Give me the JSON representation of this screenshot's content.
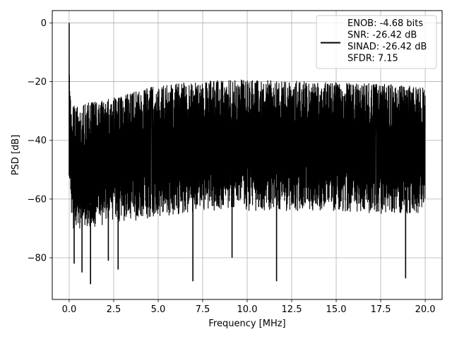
{
  "chart_data": {
    "type": "line",
    "title": "",
    "xlabel": "Frequency [MHz]",
    "ylabel": "PSD [dB]",
    "xlim": [
      -0.95,
      20.95
    ],
    "ylim": [
      -94.2,
      4.2
    ],
    "xticks": [
      0.0,
      2.5,
      5.0,
      7.5,
      10.0,
      12.5,
      15.0,
      17.5,
      20.0
    ],
    "xtick_labels": [
      "0.0",
      "2.5",
      "5.0",
      "7.5",
      "10.0",
      "12.5",
      "15.0",
      "17.5",
      "20.0"
    ],
    "yticks": [
      0,
      -20,
      -40,
      -60,
      -80
    ],
    "ytick_labels": [
      "0",
      "−20",
      "−40",
      "−60",
      "−80"
    ],
    "grid": true,
    "legend_position": "upper-right",
    "series": [
      {
        "name": "ENOB: -4.68 bits\nSNR: -26.42 dB\nSINAD: -26.42 dB\nSFDR: 7.15",
        "legend_lines": [
          "ENOB: -4.68 bits",
          "SNR: -26.42 dB",
          "SINAD: -26.42 dB",
          "SFDR: 7.15"
        ],
        "color": "#000000",
        "envelope_x": [
          0.0,
          0.05,
          0.1,
          0.5,
          1.0,
          2.0,
          3.0,
          4.0,
          5.0,
          7.5,
          10.0,
          12.5,
          15.0,
          17.5,
          20.0
        ],
        "envelope_top": [
          0.0,
          -20.0,
          -29.0,
          -29.0,
          -28.5,
          -27.5,
          -26.0,
          -24.0,
          -22.5,
          -21.0,
          -20.5,
          -21.0,
          -21.5,
          -22.0,
          -23.0
        ],
        "envelope_bottom": [
          -52.0,
          -60.0,
          -70.0,
          -70.0,
          -70.0,
          -69.0,
          -68.0,
          -67.0,
          -66.0,
          -64.0,
          -64.0,
          -64.0,
          -64.0,
          -65.0,
          -65.0
        ],
        "spikes": [
          {
            "x": 0.28,
            "y": -82.0
          },
          {
            "x": 0.72,
            "y": -85.0
          },
          {
            "x": 1.2,
            "y": -89.0
          },
          {
            "x": 2.2,
            "y": -81.0
          },
          {
            "x": 2.75,
            "y": -84.0
          },
          {
            "x": 6.95,
            "y": -88.0
          },
          {
            "x": 9.15,
            "y": -80.0
          },
          {
            "x": 11.65,
            "y": -88.0
          },
          {
            "x": 18.9,
            "y": -87.0
          }
        ]
      }
    ]
  }
}
